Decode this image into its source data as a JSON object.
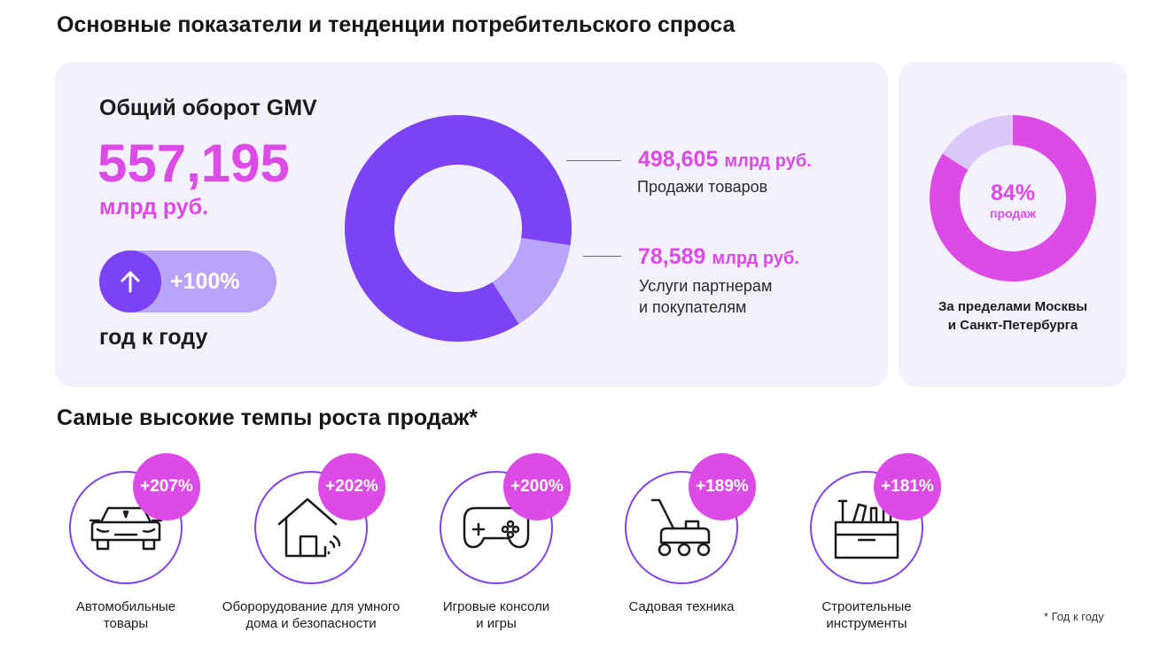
{
  "header": {
    "title": "Основные показатели и тенденции потребительского спроса",
    "growth_title": "Самые высокие темпы роста продаж*"
  },
  "gmv": {
    "label": "Общий оборот GMV",
    "value": "557,195",
    "unit": "млрд руб.",
    "growth": "+100%",
    "growth_period": "год к году"
  },
  "chart_data": [
    {
      "type": "pie",
      "title": "Общий оборот GMV",
      "total": "557,195 млрд руб.",
      "categories": [
        "Продажи товаров",
        "Услуги партнерам и покупателям"
      ],
      "values": [
        498.605,
        78.589
      ],
      "value_labels": [
        "498,605",
        "78,589"
      ],
      "unit_label": "млрд руб.",
      "desc_lines": [
        [
          "Продажи товаров"
        ],
        [
          "Услуги партнерам",
          "и покупателям"
        ]
      ],
      "colors": [
        "#7c42f5",
        "#b9a4fb"
      ]
    },
    {
      "type": "pie",
      "title": "За пределами Москвы и Санкт-Петербурга",
      "categories": [
        "За пределами Москвы и Санкт-Петербурга",
        "Москва и Санкт-Петербург"
      ],
      "values": [
        84,
        16
      ],
      "center_value": "84%",
      "center_label": "продаж",
      "caption_lines": [
        "За пределами Москвы",
        "и Санкт-Петербурга"
      ],
      "colors": [
        "#dc4be6",
        "#dcc7fb"
      ]
    },
    {
      "type": "bar",
      "title": "Самые высокие темпы роста продаж*",
      "categories": [
        "Автомобильные товары",
        "Оборорудование для умного дома и безопасности",
        "Игровые консоли и игры",
        "Садовая техника",
        "Строительные инструменты"
      ],
      "values": [
        207,
        202,
        200,
        189,
        181
      ],
      "value_labels": [
        "+207%",
        "+202%",
        "+200%",
        "+189%",
        "+181%"
      ],
      "label_lines": [
        [
          "Автомобильные",
          "товары"
        ],
        [
          "Оборорудование для умного",
          "дома и безопасности"
        ],
        [
          "Игровые консоли",
          "и игры"
        ],
        [
          "Садовая техника"
        ],
        [
          "Строительные",
          "инструменты"
        ]
      ],
      "icons": [
        "car-icon",
        "smart-home-icon",
        "gamepad-icon",
        "lawn-mower-icon",
        "toolbox-icon"
      ]
    }
  ],
  "footnote": "* Год к году",
  "colors": {
    "accent_pink": "#dc4be6",
    "accent_purple": "#7c42f5",
    "light_purple": "#b9a4fb",
    "card_bg": "#f4f1fe"
  }
}
